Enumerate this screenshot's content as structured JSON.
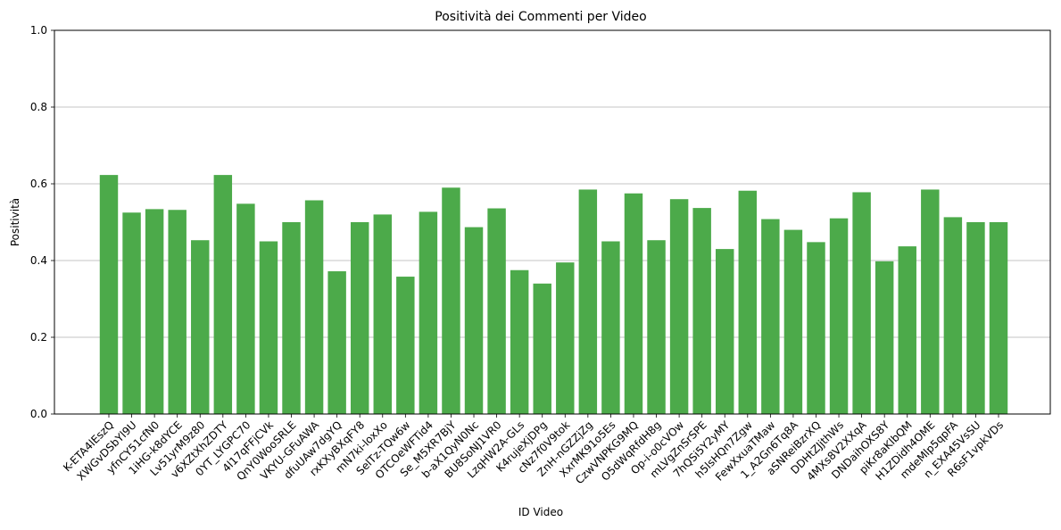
{
  "chart_data": {
    "type": "bar",
    "title": "Positività dei Commenti per Video",
    "xlabel": "ID Video",
    "ylabel": "Positività",
    "ylim": [
      0,
      1.0
    ],
    "yticks": [
      "0.0",
      "0.2",
      "0.4",
      "0.6",
      "0.8",
      "1.0"
    ],
    "ytick_values": [
      0.0,
      0.2,
      0.4,
      0.6,
      0.8,
      1.0
    ],
    "grid": "y",
    "bar_color": "#4caa4a",
    "categories": [
      "K-ETA4lEszQ",
      "XWGvDSbYl9U",
      "yfnCY51cfN0",
      "1iHG-k8dYCE",
      "Lv51yrM9z80",
      "v6XZtXhZDTY",
      "0YT_LYGPC70",
      "4l17qFFjCVk",
      "QnY0WooSRLE",
      "VKYU-GFuAWA",
      "dfuUAw7dgYQ",
      "rxKXyBXqFY8",
      "mN7ki-loxXo",
      "SelTz-TQw6w",
      "OTCOeWFTid4",
      "Se_M5XR7BjY",
      "b-aX1QyN0Nc",
      "BU8SoNJ1VR0",
      "LzqHW2A-GLs",
      "K4rujeXjDPg",
      "cNz7f0V9tok",
      "ZnH-nGZZjZg",
      "XxrMK91o5Es",
      "CzwVNPKG9MQ",
      "O5dWqRfdH8g",
      "Op-i-o0cVOw",
      "mLVgZnSrSPE",
      "7hQSi5Y2yMY",
      "h5lsHQn7Zgw",
      "FewXxuaTMaw",
      "1_A2Gn6Tq8A",
      "aSNReiBzrXQ",
      "DDHtZJjthWs",
      "4MXs8V2XXqA",
      "DNDaihOXS8Y",
      "piKr8aKlbQM",
      "H1ZDidh4OME",
      "mdeMlp5qpFA",
      "n_EXA45VsSU",
      "R6sF1vpkVDs"
    ],
    "values": [
      0.623,
      0.525,
      0.534,
      0.532,
      0.453,
      0.623,
      0.548,
      0.45,
      0.5,
      0.557,
      0.372,
      0.5,
      0.52,
      0.358,
      0.527,
      0.59,
      0.487,
      0.536,
      0.375,
      0.34,
      0.395,
      0.585,
      0.45,
      0.575,
      0.453,
      0.56,
      0.537,
      0.43,
      0.582,
      0.508,
      0.48,
      0.448,
      0.51,
      0.578,
      0.398,
      0.437,
      0.585,
      0.513,
      0.5,
      0.5
    ]
  }
}
